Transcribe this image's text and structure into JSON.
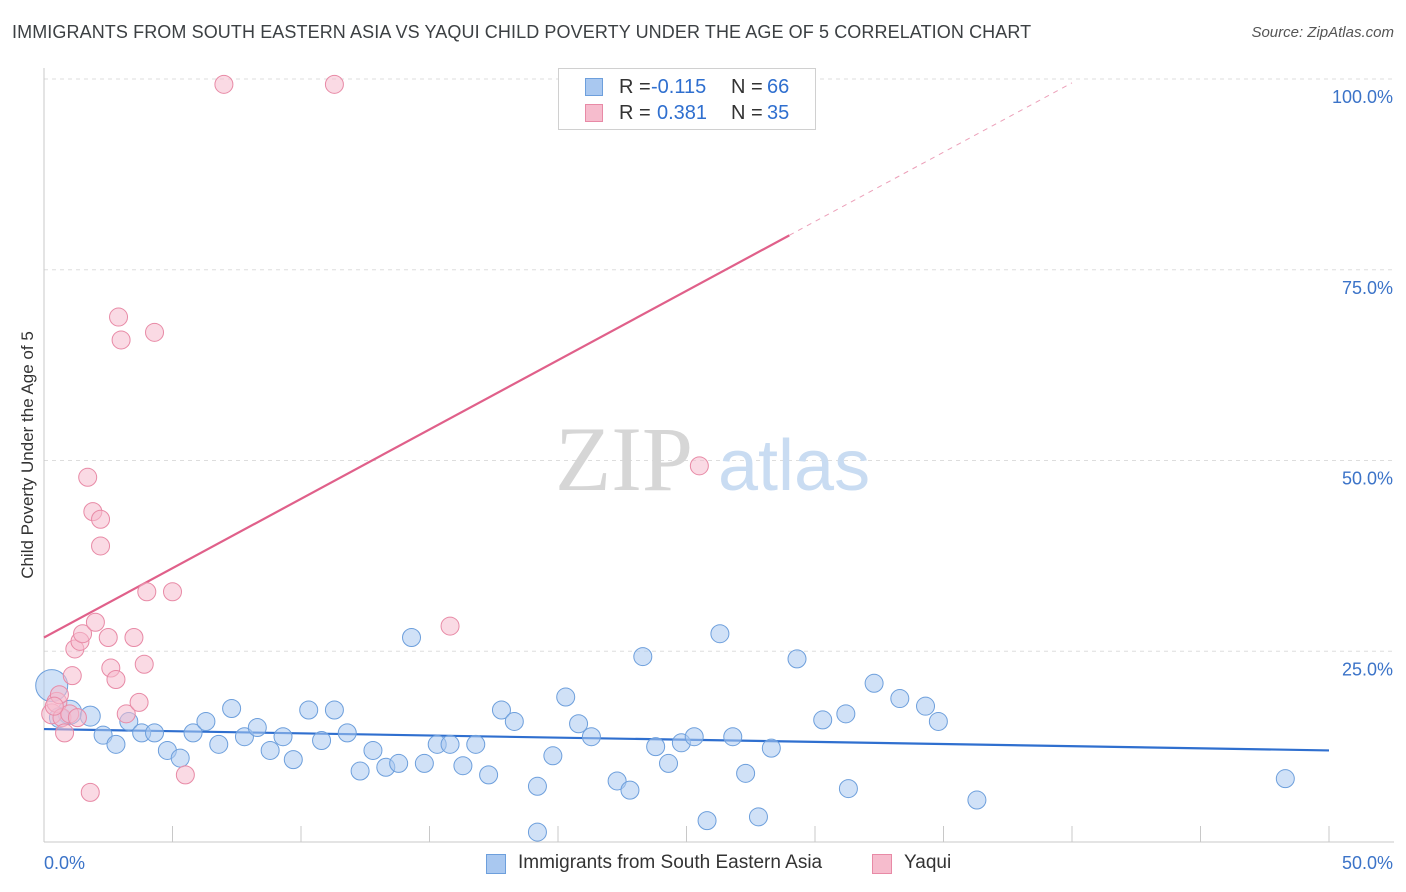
{
  "title": "IMMIGRANTS FROM SOUTH EASTERN ASIA VS YAQUI CHILD POVERTY UNDER THE AGE OF 5 CORRELATION CHART",
  "source": "Source: ZipAtlas.com",
  "watermark": {
    "zip": "ZIP",
    "atlas": "atlas"
  },
  "legend": {
    "rows": [
      {
        "r_label": "R =",
        "r_value": "-0.115",
        "n_label": "N =",
        "n_value": "66"
      },
      {
        "r_label": "R =",
        "r_value": "0.381",
        "n_label": "N =",
        "n_value": "35"
      }
    ]
  },
  "colors": {
    "blue_fill": "#a9c8f0",
    "blue_stroke": "#6d9fdc",
    "blue_line": "#2f6fcf",
    "pink_fill": "#f6bccd",
    "pink_stroke": "#e88aa6",
    "pink_line": "#e0608a",
    "grid": "#dddddd",
    "axis_label": "#3b73c8"
  },
  "chart_data": {
    "type": "scatter",
    "title": "IMMIGRANTS FROM SOUTH EASTERN ASIA VS YAQUI CHILD POVERTY UNDER THE AGE OF 5 CORRELATION CHART",
    "xlabel": "",
    "ylabel": "Child Poverty Under the Age of 5",
    "xlim": [
      0,
      50
    ],
    "ylim": [
      0,
      100
    ],
    "x_tick_labels": [
      "0.0%",
      "50.0%"
    ],
    "y_ticks": [
      25,
      50,
      75,
      100
    ],
    "y_tick_labels": [
      "25.0%",
      "50.0%",
      "75.0%",
      "100.0%"
    ],
    "grid": true,
    "series": [
      {
        "name": "Immigrants from South Eastern Asia",
        "color": "blue",
        "r": -0.115,
        "n": 66,
        "trend": {
          "x": [
            0,
            50
          ],
          "y": [
            14.8,
            12.0
          ],
          "dashed_from_x": null
        },
        "points": [
          [
            0.3,
            20.5,
            16
          ],
          [
            1.0,
            17.0,
            12
          ],
          [
            1.8,
            16.5,
            10
          ],
          [
            2.3,
            14.0,
            9
          ],
          [
            2.8,
            12.8,
            9
          ],
          [
            3.3,
            15.8,
            9
          ],
          [
            3.8,
            14.3,
            9
          ],
          [
            4.3,
            14.3,
            9
          ],
          [
            4.8,
            12.0,
            9
          ],
          [
            5.3,
            11.0,
            9
          ],
          [
            5.8,
            14.3,
            9
          ],
          [
            6.3,
            15.8,
            9
          ],
          [
            6.8,
            12.8,
            9
          ],
          [
            7.3,
            17.5,
            9
          ],
          [
            7.8,
            13.8,
            9
          ],
          [
            8.3,
            15.0,
            9
          ],
          [
            8.8,
            12.0,
            9
          ],
          [
            9.3,
            13.8,
            9
          ],
          [
            9.7,
            10.8,
            9
          ],
          [
            10.3,
            17.3,
            9
          ],
          [
            10.8,
            13.3,
            9
          ],
          [
            11.3,
            17.3,
            9
          ],
          [
            11.8,
            14.3,
            9
          ],
          [
            12.3,
            9.3,
            9
          ],
          [
            12.8,
            12.0,
            9
          ],
          [
            13.3,
            9.8,
            9
          ],
          [
            13.8,
            10.3,
            9
          ],
          [
            14.3,
            26.8,
            9
          ],
          [
            14.8,
            10.3,
            9
          ],
          [
            15.3,
            12.8,
            9
          ],
          [
            15.8,
            12.8,
            9
          ],
          [
            16.3,
            10.0,
            9
          ],
          [
            16.8,
            12.8,
            9
          ],
          [
            17.3,
            8.8,
            9
          ],
          [
            17.8,
            17.3,
            9
          ],
          [
            18.3,
            15.8,
            9
          ],
          [
            19.2,
            7.3,
            9
          ],
          [
            19.2,
            1.3,
            9
          ],
          [
            19.8,
            11.3,
            9
          ],
          [
            20.3,
            19.0,
            9
          ],
          [
            20.8,
            15.5,
            9
          ],
          [
            21.3,
            13.8,
            9
          ],
          [
            22.3,
            8.0,
            9
          ],
          [
            22.8,
            6.8,
            9
          ],
          [
            23.3,
            24.3,
            9
          ],
          [
            23.8,
            12.5,
            9
          ],
          [
            24.3,
            10.3,
            9
          ],
          [
            24.8,
            13.0,
            9
          ],
          [
            25.3,
            13.8,
            9
          ],
          [
            25.8,
            2.8,
            9
          ],
          [
            26.3,
            27.3,
            9
          ],
          [
            26.8,
            13.8,
            9
          ],
          [
            27.3,
            9.0,
            9
          ],
          [
            27.8,
            3.3,
            9
          ],
          [
            28.3,
            12.3,
            9
          ],
          [
            29.3,
            24.0,
            9
          ],
          [
            30.3,
            16.0,
            9
          ],
          [
            31.2,
            16.8,
            9
          ],
          [
            31.3,
            7.0,
            9
          ],
          [
            32.3,
            20.8,
            9
          ],
          [
            33.3,
            18.8,
            9
          ],
          [
            34.3,
            17.8,
            9
          ],
          [
            34.8,
            15.8,
            9
          ],
          [
            36.3,
            5.5,
            9
          ],
          [
            48.3,
            8.3,
            9
          ],
          [
            0.6,
            16.3,
            10
          ]
        ]
      },
      {
        "name": "Yaqui",
        "color": "pink",
        "r": 0.381,
        "n": 35,
        "trend": {
          "x": [
            0,
            40
          ],
          "y": [
            26.8,
            99.5
          ],
          "dashed_from_x": 29
        },
        "points": [
          [
            0.3,
            16.8,
            10
          ],
          [
            0.5,
            18.3,
            10
          ],
          [
            0.6,
            19.3,
            9
          ],
          [
            0.7,
            16.3,
            9
          ],
          [
            0.8,
            14.3,
            9
          ],
          [
            1.0,
            16.8,
            9
          ],
          [
            1.1,
            21.8,
            9
          ],
          [
            1.2,
            25.3,
            9
          ],
          [
            1.4,
            26.3,
            9
          ],
          [
            1.5,
            27.3,
            9
          ],
          [
            1.7,
            47.8,
            9
          ],
          [
            1.8,
            6.5,
            9
          ],
          [
            1.9,
            43.3,
            9
          ],
          [
            2.0,
            28.8,
            9
          ],
          [
            2.2,
            42.3,
            9
          ],
          [
            2.2,
            38.8,
            9
          ],
          [
            2.5,
            26.8,
            9
          ],
          [
            2.6,
            22.8,
            9
          ],
          [
            2.8,
            21.3,
            9
          ],
          [
            2.9,
            68.8,
            9
          ],
          [
            3.0,
            65.8,
            9
          ],
          [
            3.2,
            16.8,
            9
          ],
          [
            3.5,
            26.8,
            9
          ],
          [
            3.7,
            18.3,
            9
          ],
          [
            3.9,
            23.3,
            9
          ],
          [
            4.0,
            32.8,
            9
          ],
          [
            4.3,
            66.8,
            9
          ],
          [
            5.0,
            32.8,
            9
          ],
          [
            5.5,
            8.8,
            9
          ],
          [
            7.0,
            99.3,
            9
          ],
          [
            11.3,
            99.3,
            9
          ],
          [
            15.8,
            28.3,
            9
          ],
          [
            25.5,
            49.3,
            9
          ],
          [
            0.4,
            17.8,
            9
          ],
          [
            1.3,
            16.3,
            9
          ]
        ]
      }
    ]
  },
  "bottom_legend": [
    {
      "label": "Immigrants from South Eastern Asia"
    },
    {
      "label": "Yaqui"
    }
  ]
}
